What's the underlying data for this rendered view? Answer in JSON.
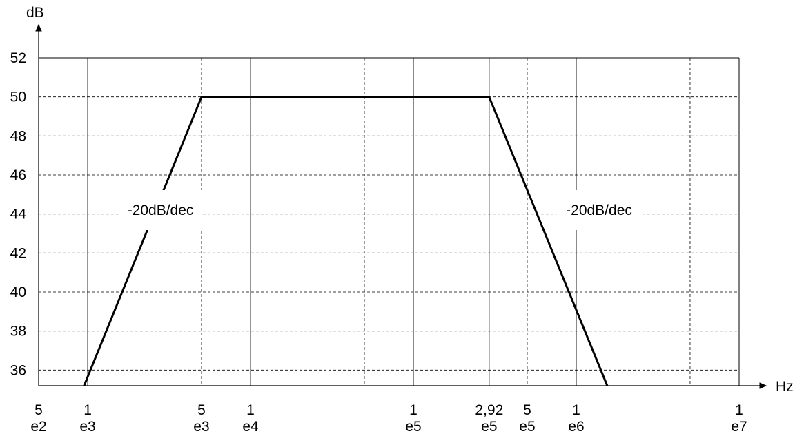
{
  "chart_data": {
    "type": "line",
    "ylabel": "dB",
    "xlabel": "Hz",
    "x_scale": "log",
    "xlim": [
      500,
      10000000
    ],
    "ylim": [
      35.2,
      52
    ],
    "y_ticks": [
      36,
      38,
      40,
      42,
      44,
      46,
      48,
      50,
      52
    ],
    "x_ticks": [
      {
        "value": 500,
        "line1": "5",
        "line2": "e2",
        "grid": "none"
      },
      {
        "value": 1000,
        "line1": "1",
        "line2": "e3",
        "grid": "solid"
      },
      {
        "value": 5000,
        "line1": "5",
        "line2": "e3",
        "grid": "dashed"
      },
      {
        "value": 10000,
        "line1": "1",
        "line2": "e4",
        "grid": "solid"
      },
      {
        "value": 50000,
        "line1": "",
        "line2": "",
        "grid": "dashed"
      },
      {
        "value": 100000,
        "line1": "1",
        "line2": "e5",
        "grid": "solid"
      },
      {
        "value": 292000,
        "line1": "2,92",
        "line2": "e5",
        "grid": "solid"
      },
      {
        "value": 500000,
        "line1": "5",
        "line2": "e5",
        "grid": "dashed"
      },
      {
        "value": 1000000,
        "line1": "1",
        "line2": "e6",
        "grid": "solid"
      },
      {
        "value": 5000000,
        "line1": "",
        "line2": "",
        "grid": "dashed"
      },
      {
        "value": 10000000,
        "line1": "1",
        "line2": "e7",
        "grid": "solid"
      }
    ],
    "series": [
      {
        "points": [
          [
            950,
            35.2
          ],
          [
            5000,
            50
          ],
          [
            292000,
            50
          ],
          [
            1550000,
            35.2
          ]
        ]
      }
    ],
    "annotations": [
      {
        "text": "-20dB/dec",
        "x": 2800,
        "y": 44.2
      },
      {
        "text": "-20dB/dec",
        "x": 1380000,
        "y": 44.2
      }
    ],
    "grid": true,
    "legend": "none"
  }
}
